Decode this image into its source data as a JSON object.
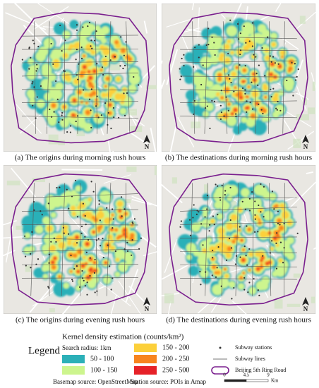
{
  "panels": [
    {
      "caption": "(a) The origins during morning rush hours"
    },
    {
      "caption": "(b) The destinations during morning rush hours"
    },
    {
      "caption": "(c) The origins during evening rush hours"
    },
    {
      "caption": "(d) The destinations during evening rush hours"
    }
  ],
  "north_label": "N",
  "legend": {
    "title": "Legend",
    "kde_title": "Kernel density estimation (counts/km²)",
    "search_radius": "Search radius: 1km",
    "classes": [
      {
        "label": "50 - 100",
        "color": "#2cb0b8"
      },
      {
        "label": "100 - 150",
        "color": "#cdf58e"
      },
      {
        "label": "150 - 200",
        "color": "#fcd03a"
      },
      {
        "label": "200 - 250",
        "color": "#f7841f"
      },
      {
        "label": "250 - 500",
        "color": "#e62128"
      }
    ],
    "symbols": [
      "Subway stations",
      "Subway lines",
      "Beijing 5th Ring Road"
    ]
  },
  "sources": [
    "Basemap source: OpenStreetMap",
    "Station source: POIs in Amap"
  ],
  "scale_bar": {
    "ticks": [
      0,
      4.5,
      9
    ],
    "unit": "Km"
  }
}
